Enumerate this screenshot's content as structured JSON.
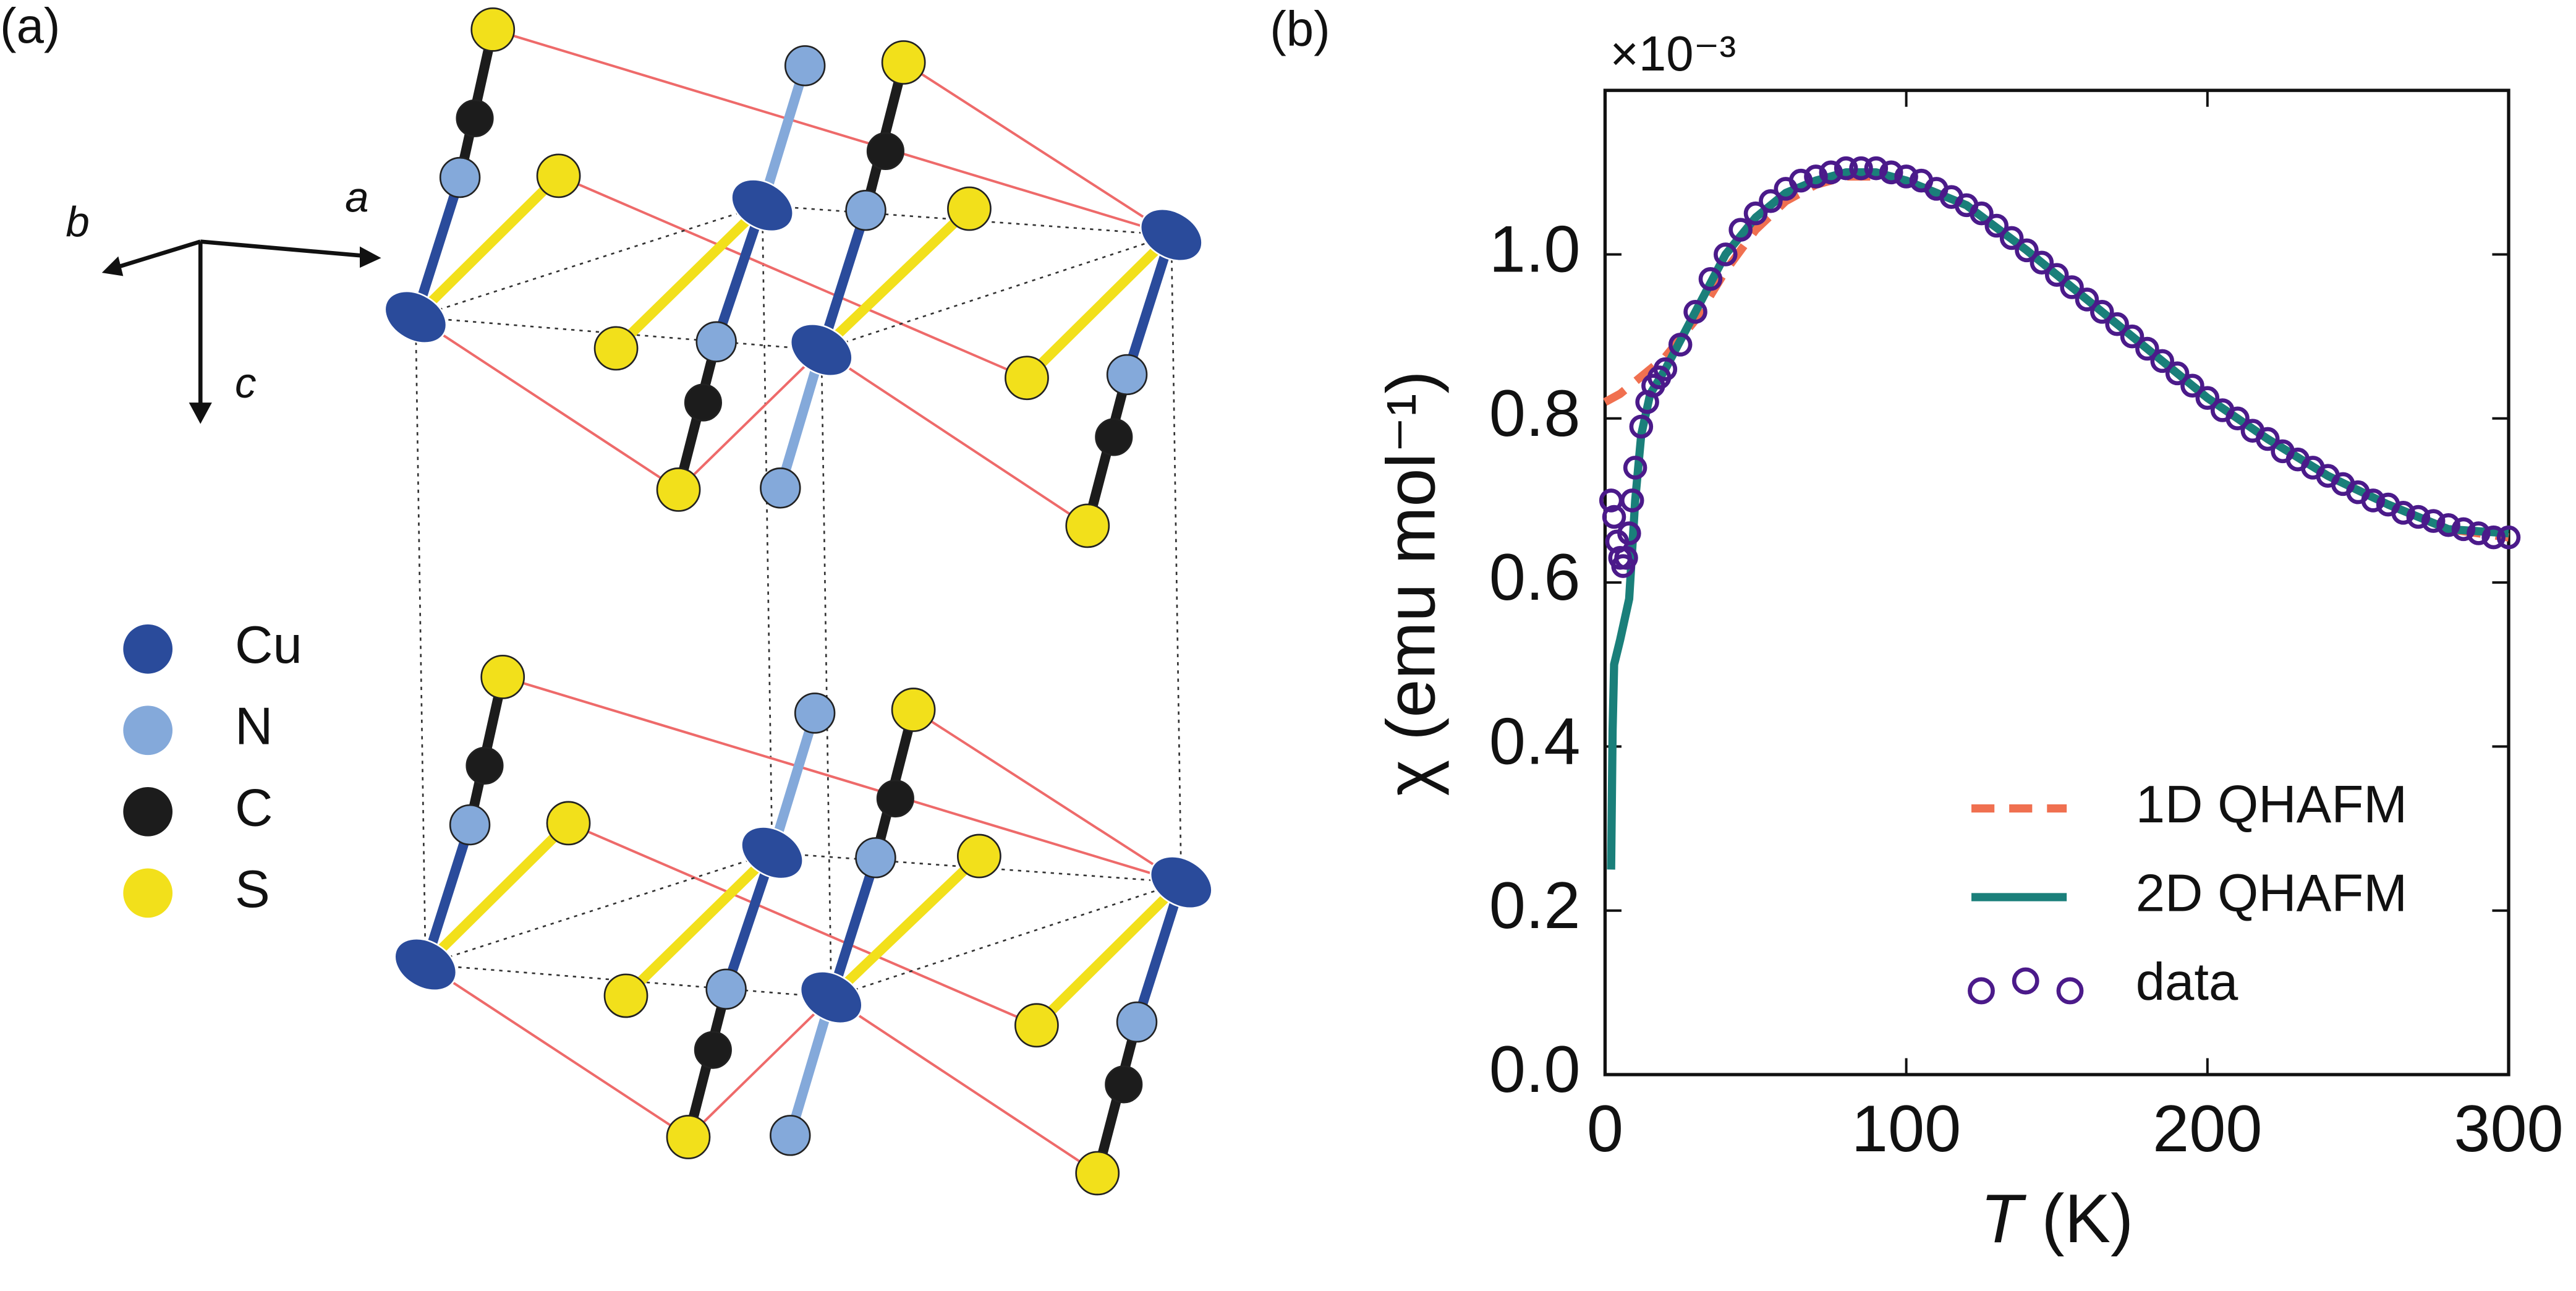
{
  "panel_a": {
    "label": "(a)",
    "axes": [
      "a",
      "b",
      "c"
    ],
    "legend": [
      {
        "name": "Cu",
        "color": "#2a4b9b"
      },
      {
        "name": "N",
        "color": "#84a9da"
      },
      {
        "name": "C",
        "color": "#1c1c1c"
      },
      {
        "name": "S",
        "color": "#f2e01b"
      }
    ]
  },
  "chart_data": {
    "type": "line",
    "label": "(b)",
    "multiplier": "×10⁻³",
    "y_label": "χ (emu mol⁻¹)",
    "x_label": {
      "symbol": "T",
      "unit": "(K)"
    },
    "xlim": [
      0,
      300
    ],
    "xticks": [
      0,
      100,
      200,
      300
    ],
    "ylim": [
      0,
      1.2
    ],
    "yticks": [
      {
        "value": 0,
        "label": "0.0"
      },
      0.2,
      0.4,
      0.6,
      0.8,
      {
        "value": 1,
        "label": "1.0"
      }
    ],
    "legend": "lower right",
    "series": [
      {
        "name": "1D QHAFM",
        "color": "#f07050",
        "style": "dashed",
        "x": [
          0,
          5,
          10,
          15,
          20,
          30,
          40,
          50,
          60,
          70,
          80,
          90,
          100,
          120,
          140,
          160,
          180,
          200,
          220,
          240,
          260,
          280,
          300
        ],
        "values": [
          0.82,
          0.83,
          0.845,
          0.86,
          0.875,
          0.92,
          0.98,
          1.03,
          1.065,
          1.085,
          1.095,
          1.095,
          1.09,
          1.06,
          1.005,
          0.945,
          0.885,
          0.825,
          0.775,
          0.73,
          0.695,
          0.665,
          0.655
        ]
      },
      {
        "name": "2D QHAFM",
        "color": "#1a7f7a",
        "style": "solid",
        "x": [
          2,
          2.5,
          3,
          5,
          8,
          10,
          12,
          15,
          20,
          30,
          40,
          50,
          60,
          70,
          80,
          90,
          100,
          120,
          140,
          160,
          180,
          200,
          220,
          240,
          260,
          280,
          300
        ],
        "values": [
          0.25,
          0.42,
          0.5,
          0.53,
          0.58,
          0.7,
          0.78,
          0.83,
          0.86,
          0.93,
          1.0,
          1.045,
          1.075,
          1.09,
          1.1,
          1.1,
          1.09,
          1.06,
          1.005,
          0.945,
          0.885,
          0.825,
          0.775,
          0.73,
          0.695,
          0.665,
          0.66
        ]
      },
      {
        "name": "data",
        "color": "#4b1a8a",
        "style": "markers",
        "x": [
          2,
          3,
          4,
          5,
          6,
          7,
          8,
          9,
          10,
          12,
          14,
          16,
          18,
          20,
          25,
          30,
          35,
          40,
          45,
          50,
          55,
          60,
          65,
          70,
          75,
          80,
          85,
          90,
          95,
          100,
          105,
          110,
          115,
          120,
          125,
          130,
          135,
          140,
          145,
          150,
          155,
          160,
          165,
          170,
          175,
          180,
          185,
          190,
          195,
          200,
          205,
          210,
          215,
          220,
          225,
          230,
          235,
          240,
          245,
          250,
          255,
          260,
          265,
          270,
          275,
          280,
          285,
          290,
          295,
          300
        ],
        "values": [
          0.7,
          0.68,
          0.65,
          0.63,
          0.62,
          0.63,
          0.66,
          0.7,
          0.74,
          0.79,
          0.82,
          0.84,
          0.85,
          0.86,
          0.89,
          0.93,
          0.97,
          1.0,
          1.03,
          1.05,
          1.065,
          1.08,
          1.09,
          1.095,
          1.1,
          1.105,
          1.105,
          1.105,
          1.1,
          1.095,
          1.09,
          1.08,
          1.07,
          1.06,
          1.05,
          1.035,
          1.02,
          1.005,
          0.99,
          0.975,
          0.96,
          0.945,
          0.93,
          0.915,
          0.9,
          0.885,
          0.87,
          0.855,
          0.84,
          0.825,
          0.81,
          0.8,
          0.785,
          0.775,
          0.76,
          0.75,
          0.74,
          0.73,
          0.72,
          0.71,
          0.7,
          0.695,
          0.685,
          0.68,
          0.675,
          0.67,
          0.665,
          0.66,
          0.655,
          0.655
        ]
      }
    ]
  }
}
